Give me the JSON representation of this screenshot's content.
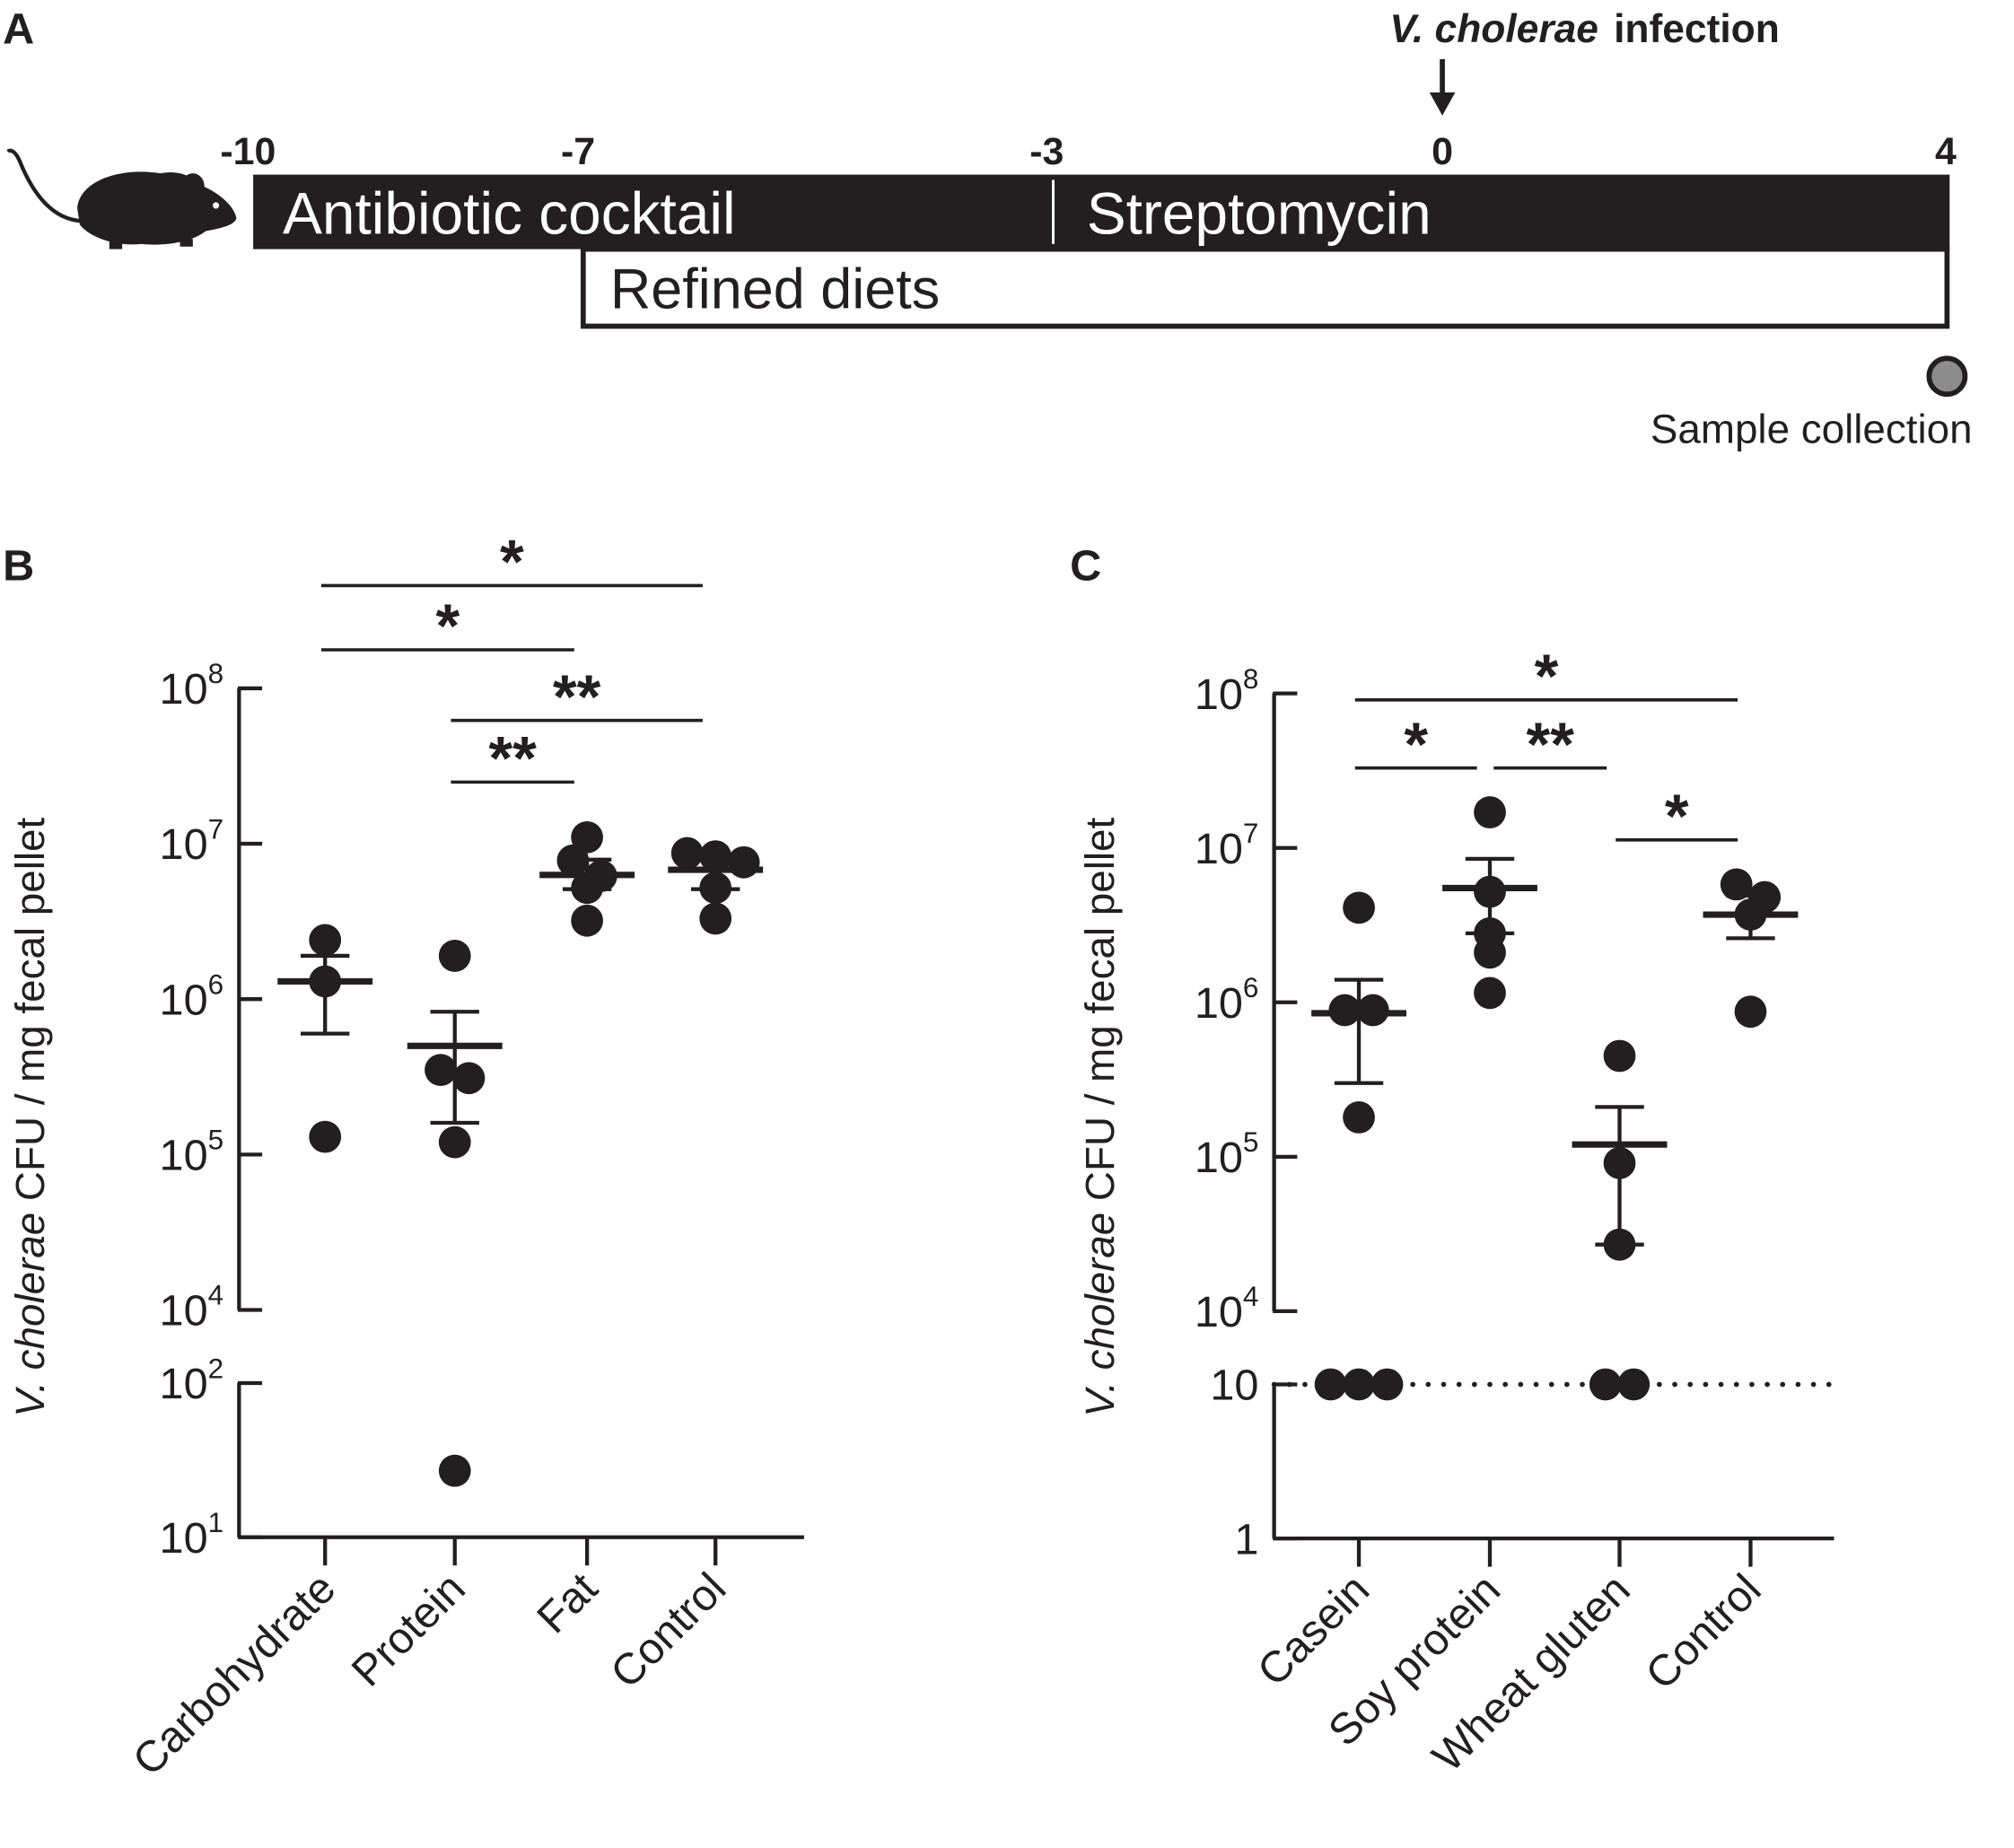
{
  "panel_a": {
    "label": "A",
    "infection_label_italic": "V. cholerae",
    "infection_label_rest": "infection",
    "days": [
      "-10",
      "-7",
      "-3",
      "0",
      "4"
    ],
    "antibiotic_label": "Antibiotic cocktail",
    "streptomycin_label": "Streptomycin",
    "diet_label": "Refined diets",
    "sample_label": "Sample collection",
    "sample_marker_color": "#8c8c8c",
    "icons": [
      "mouse-icon",
      "arrow-down-icon"
    ]
  },
  "chart_data": [
    {
      "panel": "B",
      "type": "scatter",
      "yscale": "log (broken axis)",
      "ylabel_italic": "V. cholerae",
      "ylabel_rest": " CFU / mg fecal pellet",
      "ylim_upper": [
        10000,
        100000000
      ],
      "ylim_lower": [
        10,
        100
      ],
      "yticks": [
        {
          "base": "10",
          "exp": "8",
          "value": 100000000
        },
        {
          "base": "10",
          "exp": "7",
          "value": 10000000
        },
        {
          "base": "10",
          "exp": "6",
          "value": 1000000
        },
        {
          "base": "10",
          "exp": "5",
          "value": 100000
        },
        {
          "base": "10",
          "exp": "4",
          "value": 10000
        },
        {
          "base": "10",
          "exp": "2",
          "value": 100
        },
        {
          "base": "10",
          "exp": "1",
          "value": 10
        }
      ],
      "categories": [
        "Carbohydrate",
        "Protein",
        "Fat",
        "Control"
      ],
      "groups": [
        {
          "points": [
            2400000,
            1300000,
            130000
          ],
          "mean": 1300000,
          "sem": [
            600000,
            1900000
          ]
        },
        {
          "points": [
            1900000,
            310000,
            350000,
            120000,
            27
          ],
          "mean": 500000,
          "sem": [
            160000,
            830000
          ]
        },
        {
          "points": [
            11000000,
            7800000,
            6200000,
            5200000,
            3200000
          ],
          "mean": 6300000,
          "sem": [
            5100000,
            7900000
          ]
        },
        {
          "points": [
            8700000,
            7600000,
            8300000,
            5200000,
            3300000
          ],
          "mean": 6800000,
          "sem": [
            5100000,
            8500000
          ]
        }
      ],
      "significance": [
        {
          "from": 0,
          "to": 3,
          "label": "*"
        },
        {
          "from": 0,
          "to": 2,
          "label": "*"
        },
        {
          "from": 1,
          "to": 3,
          "label": "**"
        },
        {
          "from": 1,
          "to": 2,
          "label": "**"
        }
      ]
    },
    {
      "panel": "C",
      "type": "scatter",
      "yscale": "log (broken axis)",
      "ylabel_italic": "V. cholerae",
      "ylabel_rest": " CFU / mg fecal pellet",
      "ylim_upper": [
        10000,
        100000000
      ],
      "ylim_lower": [
        1,
        10
      ],
      "detection_limit": 10,
      "yticks": [
        {
          "base": "10",
          "exp": "8",
          "value": 100000000
        },
        {
          "base": "10",
          "exp": "7",
          "value": 10000000
        },
        {
          "base": "10",
          "exp": "6",
          "value": 1000000
        },
        {
          "base": "10",
          "exp": "5",
          "value": 100000
        },
        {
          "base": "10",
          "exp": "4",
          "value": 10000
        },
        {
          "base": "10",
          "exp": "",
          "value": 10
        },
        {
          "base": "1",
          "exp": "",
          "value": 1
        }
      ],
      "categories": [
        "Casein",
        "Soy protein",
        "Wheat gluten",
        "Control"
      ],
      "groups": [
        {
          "points": [
            4100000,
            890000,
            890000,
            180000,
            10,
            10,
            10
          ],
          "mean": 850000,
          "sem": [
            300000,
            1400000
          ]
        },
        {
          "points": [
            17000000,
            5200000,
            2800000,
            2100000,
            1150000
          ],
          "mean": 5500000,
          "sem": [
            2800000,
            8500000
          ]
        },
        {
          "points": [
            450000,
            91000,
            27000,
            10,
            10
          ],
          "mean": 120000,
          "sem": [
            27000,
            210000
          ]
        },
        {
          "points": [
            5800000,
            4800000,
            3700000,
            870000
          ],
          "mean": 3700000,
          "sem": [
            2600000,
            4900000
          ]
        }
      ],
      "significance": [
        {
          "from": 0,
          "to": 3,
          "label": "*"
        },
        {
          "from": 0,
          "to": 1,
          "label": "*"
        },
        {
          "from": 1,
          "to": 2,
          "label": "**"
        },
        {
          "from": 2,
          "to": 3,
          "label": "*"
        }
      ]
    }
  ]
}
